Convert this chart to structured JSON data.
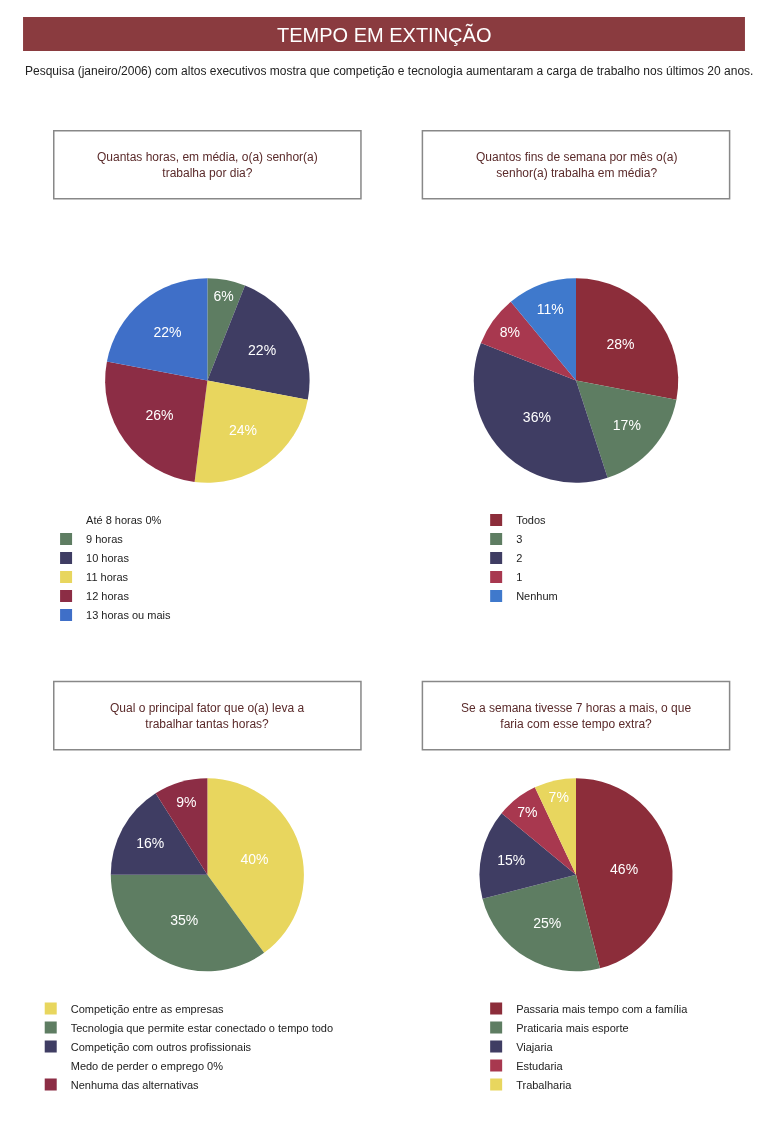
{
  "chart_data": [
    {
      "type": "other",
      "title": "TEMPO EM EXTINÇÃO",
      "subtitle": "Pesquisa (janeiro/2006) com altos executivos mostra que competição e tecnologia aumentaram a carga de trabalho nos últimos 20 anos."
    },
    {
      "type": "pie",
      "title": "Quantas horas, em média, o(a) senhor(a) trabalha por dia?",
      "legend": "bottom",
      "categories": [
        "Até 8 horas 0%",
        "9 horas",
        "10 horas",
        "11 horas",
        "12 horas",
        "13 horas ou mais"
      ],
      "values": [
        0,
        6,
        22,
        24,
        26,
        22
      ],
      "colors": [
        "#ffffff",
        "#5e7d62",
        "#3f3d63",
        "#e8d65e",
        "#8c2d45",
        "#3f6fc8"
      ],
      "value_labels": [
        null,
        "6%",
        "22%",
        "24%",
        "26%",
        "22%"
      ]
    },
    {
      "type": "pie",
      "title": "Quantos fins de semana por mês o(a) senhor(a) trabalha em média?",
      "legend": "bottom",
      "categories": [
        "Todos",
        "3",
        "2",
        "1",
        "Nenhum"
      ],
      "values": [
        28,
        17,
        36,
        8,
        11
      ],
      "colors": [
        "#8c2d3a",
        "#5e7d62",
        "#3f3d63",
        "#a8384f",
        "#3f79cc"
      ],
      "value_labels": [
        "28%",
        "17%",
        "36%",
        "8%",
        "11%"
      ]
    },
    {
      "type": "pie",
      "title": "Qual o principal fator que o(a) leva a trabalhar tantas horas?",
      "legend": "bottom",
      "categories": [
        "Competição entre as empresas",
        "Tecnologia que permite estar conectado o tempo todo",
        "Competição com outros profissionais",
        "Medo de perder o emprego 0%",
        "Nenhuma das alternativas"
      ],
      "values": [
        40,
        35,
        16,
        0,
        9
      ],
      "colors": [
        "#e8d65e",
        "#5e7d62",
        "#3f3d63",
        "#ffffff",
        "#8c2d45"
      ],
      "value_labels": [
        "40%",
        "35%",
        "16%",
        null,
        "9%"
      ]
    },
    {
      "type": "pie",
      "title": "Se a semana tivesse 7 horas a mais, o que faria com esse tempo extra?",
      "legend": "bottom",
      "categories": [
        "Passaria mais tempo com a família",
        "Praticaria mais esporte",
        "Viajaria",
        "Estudaria",
        "Trabalharia"
      ],
      "values": [
        46,
        25,
        15,
        7,
        7
      ],
      "colors": [
        "#8c2d3a",
        "#5e7d62",
        "#3f3d63",
        "#a8384f",
        "#e8d65e"
      ],
      "value_labels": [
        "46%",
        "25%",
        "15%",
        "7%",
        "7%"
      ]
    }
  ]
}
